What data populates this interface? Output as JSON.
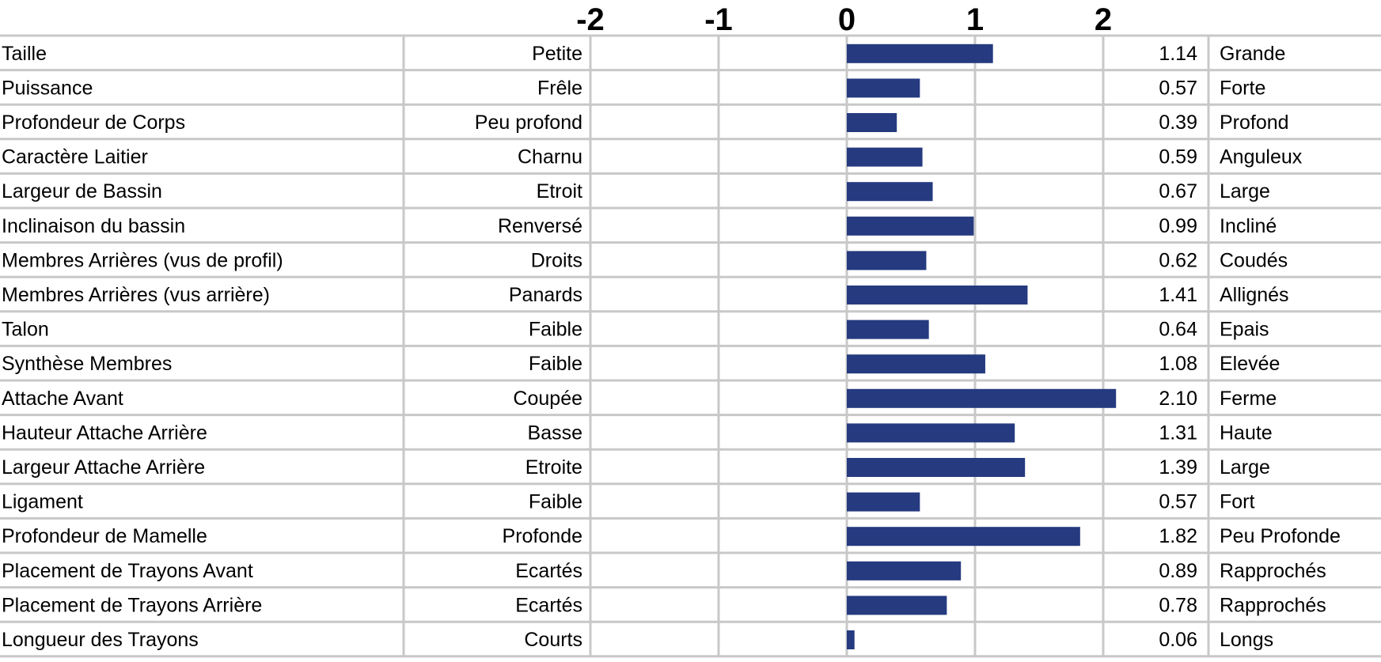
{
  "chart_data": {
    "type": "bar",
    "orientation": "horizontal",
    "xlim": [
      -2,
      2
    ],
    "ticks": [
      -2,
      -1,
      0,
      1,
      2
    ],
    "tick_labels": [
      "-2",
      "-1",
      "0",
      "1",
      "2"
    ],
    "grid": true,
    "bar_color": "#253a7f",
    "grid_color": "#c8c8c8",
    "rows": [
      {
        "trait": "Taille",
        "low": "Petite",
        "value": 1.14,
        "value_label": "1.14",
        "high": "Grande"
      },
      {
        "trait": "Puissance",
        "low": "Frêle",
        "value": 0.57,
        "value_label": "0.57",
        "high": "Forte"
      },
      {
        "trait": "Profondeur de Corps",
        "low": "Peu profond",
        "value": 0.39,
        "value_label": "0.39",
        "high": "Profond"
      },
      {
        "trait": "Caractère Laitier",
        "low": "Charnu",
        "value": 0.59,
        "value_label": "0.59",
        "high": "Anguleux"
      },
      {
        "trait": "Largeur de Bassin",
        "low": "Etroit",
        "value": 0.67,
        "value_label": "0.67",
        "high": "Large"
      },
      {
        "trait": "Inclinaison du bassin",
        "low": "Renversé",
        "value": 0.99,
        "value_label": "0.99",
        "high": "Incliné"
      },
      {
        "trait": "Membres Arrières (vus de profil)",
        "low": "Droits",
        "value": 0.62,
        "value_label": "0.62",
        "high": "Coudés"
      },
      {
        "trait": "Membres Arrières (vus arrière)",
        "low": "Panards",
        "value": 1.41,
        "value_label": "1.41",
        "high": "Allignés"
      },
      {
        "trait": "Talon",
        "low": "Faible",
        "value": 0.64,
        "value_label": "0.64",
        "high": "Epais"
      },
      {
        "trait": "Synthèse Membres",
        "low": "Faible",
        "value": 1.08,
        "value_label": "1.08",
        "high": "Elevée"
      },
      {
        "trait": "Attache Avant",
        "low": "Coupée",
        "value": 2.1,
        "value_label": "2.10",
        "high": "Ferme"
      },
      {
        "trait": "Hauteur Attache Arrière",
        "low": "Basse",
        "value": 1.31,
        "value_label": "1.31",
        "high": "Haute"
      },
      {
        "trait": "Largeur Attache Arrière",
        "low": "Etroite",
        "value": 1.39,
        "value_label": "1.39",
        "high": "Large"
      },
      {
        "trait": "Ligament",
        "low": "Faible",
        "value": 0.57,
        "value_label": "0.57",
        "high": "Fort"
      },
      {
        "trait": "Profondeur de Mamelle",
        "low": "Profonde",
        "value": 1.82,
        "value_label": "1.82",
        "high": "Peu Profonde"
      },
      {
        "trait": "Placement de Trayons Avant",
        "low": "Ecartés",
        "value": 0.89,
        "value_label": "0.89",
        "high": "Rapprochés"
      },
      {
        "trait": "Placement de Trayons Arrière",
        "low": "Ecartés",
        "value": 0.78,
        "value_label": "0.78",
        "high": "Rapprochés"
      },
      {
        "trait": "Longueur des Trayons",
        "low": "Courts",
        "value": 0.06,
        "value_label": "0.06",
        "high": "Longs"
      }
    ]
  }
}
